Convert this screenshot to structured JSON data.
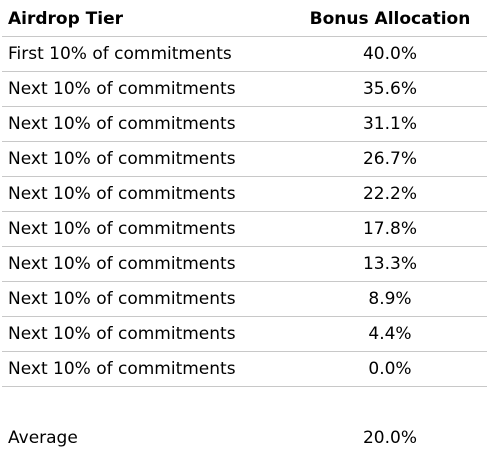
{
  "header": {
    "tier_label": "Airdrop Tier",
    "bonus_label": "Bonus Allocation"
  },
  "rows": [
    {
      "tier": "First 10% of commitments",
      "bonus": "40.0%"
    },
    {
      "tier": "Next 10% of commitments",
      "bonus": "35.6%"
    },
    {
      "tier": "Next 10% of commitments",
      "bonus": "31.1%"
    },
    {
      "tier": "Next 10% of commitments",
      "bonus": "26.7%"
    },
    {
      "tier": "Next 10% of commitments",
      "bonus": "22.2%"
    },
    {
      "tier": "Next 10% of commitments",
      "bonus": "17.8%"
    },
    {
      "tier": "Next 10% of commitments",
      "bonus": "13.3%"
    },
    {
      "tier": "Next 10% of commitments",
      "bonus": "8.9%"
    },
    {
      "tier": "Next 10% of commitments",
      "bonus": "4.4%"
    },
    {
      "tier": "Next 10% of commitments",
      "bonus": "0.0%"
    }
  ],
  "average": {
    "label": "Average",
    "value": "20.0%"
  }
}
